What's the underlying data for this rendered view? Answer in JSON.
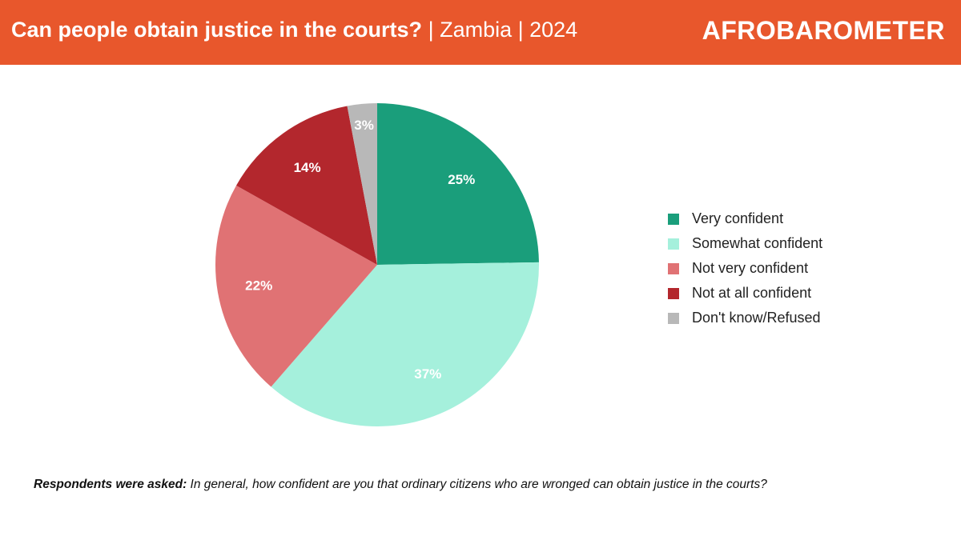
{
  "header": {
    "title_main": "Can people obtain justice in the courts?",
    "title_sub": " | Zambia | 2024",
    "brand": "AFROBAROMETER",
    "colors": {
      "background": "#e8572c",
      "text": "#ffffff"
    }
  },
  "chart_data": {
    "type": "pie",
    "title": "Can people obtain justice in the courts? | Zambia | 2024",
    "legend_position": "right",
    "start_angle_deg": 0,
    "direction": "clockwise",
    "slices": [
      {
        "label": "Very confident",
        "value": 25,
        "value_label": "25%",
        "color": "#1a9e7b"
      },
      {
        "label": "Somewhat confident",
        "value": 37,
        "value_label": "37%",
        "color": "#a5f0dc"
      },
      {
        "label": "Not very confident",
        "value": 22,
        "value_label": "22%",
        "color": "#e07274"
      },
      {
        "label": "Not at all confident",
        "value": 14,
        "value_label": "14%",
        "color": "#b3272d"
      },
      {
        "label": "Don't know/Refused",
        "value": 3,
        "value_label": "3%",
        "color": "#b8b8b8"
      }
    ]
  },
  "footnote": {
    "label": "Respondents were asked:",
    "question": " In general, how confident are you that ordinary citizens who are wronged can obtain justice in the courts?"
  }
}
